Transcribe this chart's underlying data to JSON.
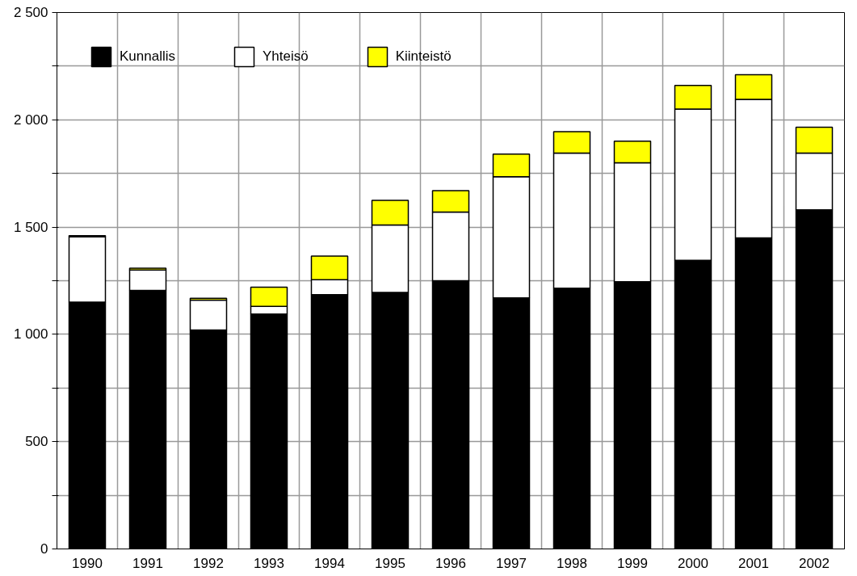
{
  "chart_data": {
    "type": "bar",
    "stacked": true,
    "categories": [
      "1990",
      "1991",
      "1992",
      "1993",
      "1994",
      "1995",
      "1996",
      "1997",
      "1998",
      "1999",
      "2000",
      "2001",
      "2002"
    ],
    "series": [
      {
        "name": "Kunnallis",
        "color": "#000000",
        "values": [
          1150,
          1205,
          1020,
          1095,
          1185,
          1195,
          1250,
          1170,
          1215,
          1245,
          1345,
          1450,
          1580
        ]
      },
      {
        "name": "Yhteisö",
        "color": "#ffffff",
        "values": [
          305,
          95,
          140,
          35,
          70,
          315,
          320,
          565,
          630,
          555,
          705,
          645,
          265
        ]
      },
      {
        "name": "Kiinteistö",
        "color": "#ffff00",
        "values": [
          5,
          8,
          8,
          90,
          110,
          115,
          100,
          105,
          100,
          100,
          110,
          115,
          120
        ]
      }
    ],
    "ylim": [
      0,
      2500
    ],
    "yticks": [
      {
        "value": 0,
        "label": "0"
      },
      {
        "value": 250,
        "label": null
      },
      {
        "value": 500,
        "label": "500"
      },
      {
        "value": 750,
        "label": null
      },
      {
        "value": 1000,
        "label": "1 000"
      },
      {
        "value": 1250,
        "label": null
      },
      {
        "value": 1500,
        "label": "1 500"
      },
      {
        "value": 1750,
        "label": null
      },
      {
        "value": 2000,
        "label": "2 000"
      },
      {
        "value": 2250,
        "label": null
      },
      {
        "value": 2500,
        "label": "2 500"
      }
    ],
    "grid": true,
    "legend": "top left"
  }
}
